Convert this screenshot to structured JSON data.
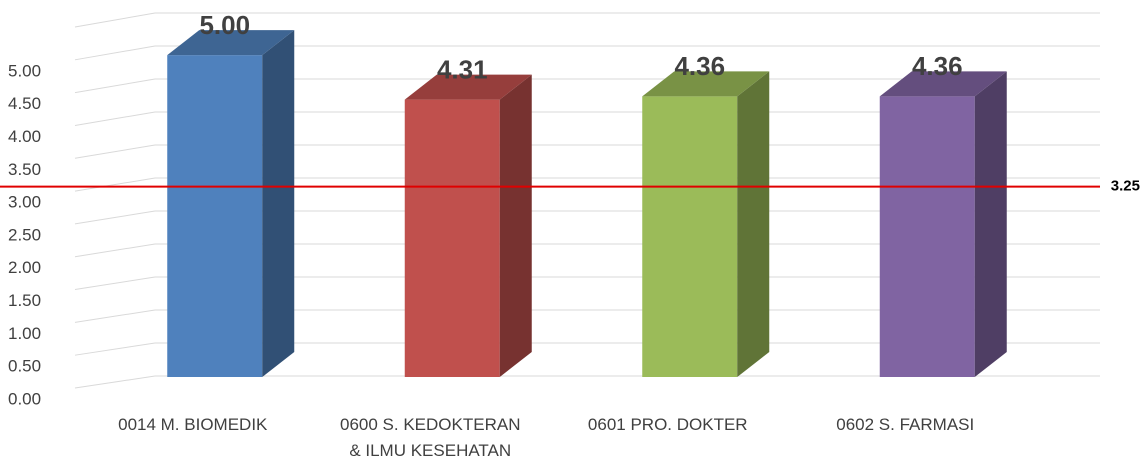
{
  "chart_data": {
    "type": "bar3d",
    "categories": [
      "0014 M. BIOMEDIK",
      "0600 S. KEDOKTERAN\n& ILMU KESEHATAN",
      "0601 PRO. DOKTER",
      "0602 S. FARMASI"
    ],
    "values": [
      5,
      4.31,
      4.36,
      4.36
    ],
    "value_labels": [
      "5.00",
      "4.31",
      "4.36",
      "4.36"
    ],
    "colors": [
      "#4f81bd",
      "#c0504d",
      "#9bbb59",
      "#8064a2"
    ],
    "ylim": [
      0,
      5.5
    ],
    "yticks": [
      {
        "value": 0,
        "label": "0.00"
      },
      {
        "value": 0.5,
        "label": "0.50"
      },
      {
        "value": 1,
        "label": "1.00"
      },
      {
        "value": 1.5,
        "label": "1.50"
      },
      {
        "value": 2,
        "label": "2.00"
      },
      {
        "value": 2.5,
        "label": "2.50"
      },
      {
        "value": 3,
        "label": "3.00"
      },
      {
        "value": 3.5,
        "label": "3.50"
      },
      {
        "value": 4,
        "label": "4.00"
      },
      {
        "value": 4.5,
        "label": "4.50"
      },
      {
        "value": 5,
        "label": "5.00"
      }
    ],
    "reference_line": {
      "value": 3.25,
      "label": "3.25",
      "color": "#e00000"
    },
    "grid": true
  }
}
